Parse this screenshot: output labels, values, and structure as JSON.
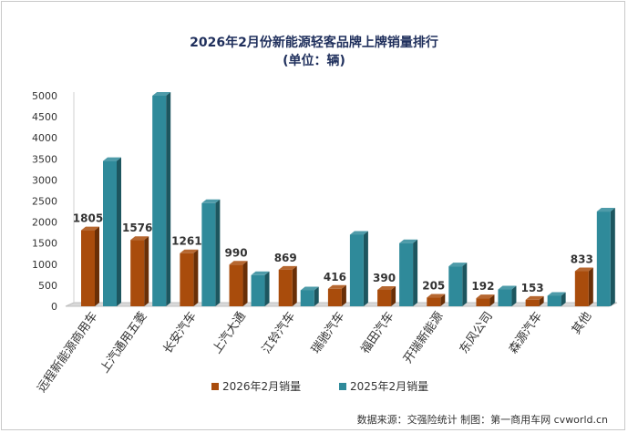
{
  "chart_data": {
    "type": "bar",
    "title": "2026年2月份新能源轻客品牌上牌销量排行",
    "subtitle": "(单位：辆)",
    "categories": [
      "远程新能源商用车",
      "上汽通用五菱",
      "长安汽车",
      "上汽大通",
      "江铃汽车",
      "瑞驰汽车",
      "福田汽车",
      "开瑞新能源",
      "东风公司",
      "森源汽车",
      "其他"
    ],
    "series": [
      {
        "name": "2026年2月销量",
        "color": "#a94c0c",
        "values": [
          1805,
          1576,
          1261,
          990,
          869,
          416,
          390,
          205,
          192,
          153,
          833
        ],
        "labels": true
      },
      {
        "name": "2025年2月销量",
        "color": "#2f8a9a",
        "values": [
          3450,
          5000,
          2450,
          740,
          380,
          1700,
          1500,
          950,
          400,
          250,
          2250
        ],
        "labels": false
      }
    ],
    "ylim": [
      0,
      5000
    ],
    "yticks": [
      0,
      500,
      1000,
      1500,
      2000,
      2500,
      3000,
      3500,
      4000,
      4500,
      5000
    ],
    "legend_position": "bottom",
    "grid": false
  },
  "source_note": "数据来源：交强险统计  制图：第一商用车网 cvworld.cn"
}
